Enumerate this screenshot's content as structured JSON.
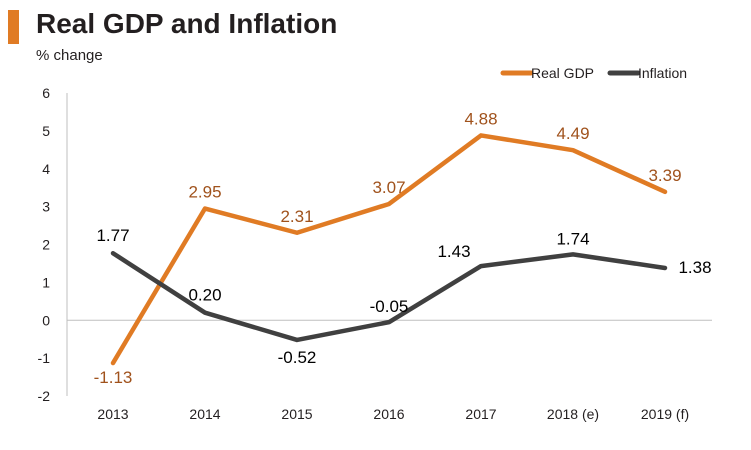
{
  "header": {
    "title": "Real GDP and Inflation",
    "subtitle": "% change",
    "accent_color": "#e07b24"
  },
  "chart_data": {
    "type": "line",
    "title": "Real GDP and Inflation",
    "subtitle": "% change",
    "xlabel": "",
    "ylabel": "",
    "categories": [
      "2013",
      "2014",
      "2015",
      "2016",
      "2017",
      "2018 (e)",
      "2019 (f)"
    ],
    "ylim": [
      -2,
      6
    ],
    "yticks": [
      -2,
      -1,
      0,
      1,
      2,
      3,
      4,
      5,
      6
    ],
    "grid": false,
    "legend_position": "top-right",
    "series": [
      {
        "name": "Real GDP",
        "color": "#e07b24",
        "label_color": "#a0521c",
        "values": [
          -1.13,
          2.95,
          2.31,
          3.07,
          4.88,
          4.49,
          3.39
        ],
        "labels": [
          "-1.13",
          "2.95",
          "2.31",
          "3.07",
          "4.88",
          "4.49",
          "3.39"
        ]
      },
      {
        "name": "Inflation",
        "color": "#404040",
        "label_color": "#000000",
        "values": [
          1.77,
          0.2,
          -0.52,
          -0.05,
          1.43,
          1.74,
          1.38
        ],
        "labels": [
          "1.77",
          "0.20",
          "-0.52",
          "-0.05",
          "1.43",
          "1.74",
          "1.38"
        ]
      }
    ]
  }
}
